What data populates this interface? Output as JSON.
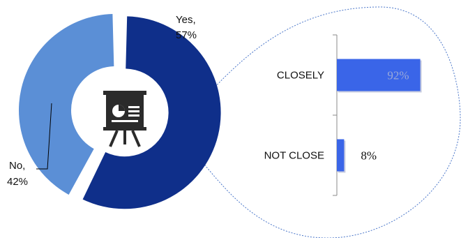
{
  "chart_data": [
    {
      "type": "pie",
      "donut": true,
      "slices": [
        {
          "label_line1": "Yes,",
          "label_line2": "57%",
          "value": 57,
          "color": "#0F2F8A"
        },
        {
          "label_line1": "No,",
          "label_line2": "42%",
          "value": 42,
          "color": "#5B8FD6"
        }
      ],
      "center_icon": "presentation-board-icon",
      "exploded_slice": "Yes"
    },
    {
      "type": "bar",
      "orientation": "horizontal",
      "categories": [
        "CLOSELY",
        "NOT CLOSE"
      ],
      "values": [
        92,
        8
      ],
      "value_labels": [
        "92%",
        "8%"
      ],
      "xlim": [
        0,
        100
      ],
      "bar_color": "#3A65E8",
      "grid": false,
      "legend": "none"
    }
  ]
}
